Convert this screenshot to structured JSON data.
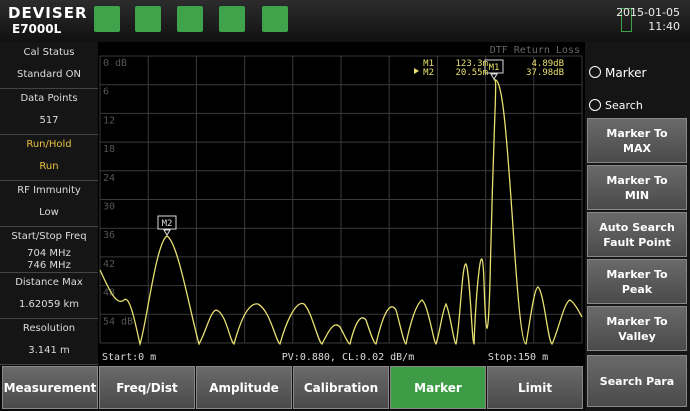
{
  "header": {
    "brand": "DEVISER",
    "model": "E7000L",
    "date": "2015-01-05",
    "time": "11:40"
  },
  "left_panel": [
    {
      "label": "Cal Status",
      "value": "Standard ON"
    },
    {
      "label": "Data Points",
      "value": "517"
    },
    {
      "label": "Run/Hold",
      "value": "Run"
    },
    {
      "label": "RF Immunity",
      "value": "Low"
    },
    {
      "label": "Start/Stop Freq",
      "value": "704 MHz",
      "value2": "746 MHz"
    },
    {
      "label": "Distance Max",
      "value": "1.62059 km"
    },
    {
      "label": "Resolution",
      "value": "3.141 m"
    }
  ],
  "plot": {
    "title": "DTF Return Loss",
    "y_labels": [
      "0 dB",
      "6",
      "12",
      "18",
      "24",
      "30",
      "36",
      "42",
      "48",
      "54 dB"
    ],
    "start": "Start:0 m",
    "center": "PV:0.880, CL:0.02 dB/m",
    "stop": "Stop:150 m",
    "markers": [
      {
        "name": "M1",
        "position": "123.3m",
        "level": "4.89dB"
      },
      {
        "name": "M2",
        "position": "20.55m",
        "level": "37.98dB"
      }
    ]
  },
  "right_panel": {
    "menu": "Marker",
    "section": "Search",
    "buttons": [
      "Marker To MAX",
      "Marker To MIN",
      "Auto Search Fault Point",
      "Marker To Peak",
      "Marker To Valley",
      "Search Para"
    ]
  },
  "tabs": [
    "Measurement",
    "Freq/Dist",
    "Amplitude",
    "Calibration",
    "Marker",
    "Limit"
  ]
}
